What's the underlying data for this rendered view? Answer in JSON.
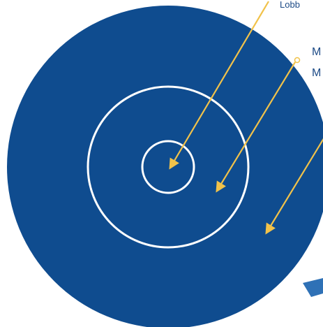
{
  "colors": {
    "outer_circle": "#0f4c8f",
    "ring_stroke": "#ffffff",
    "arrow": "#f1c24a",
    "label_text": "#1c4a86",
    "background": "#ffffff"
  },
  "labels": {
    "top": "Lobb",
    "middle_1": "M",
    "middle_2": "M"
  },
  "arrows": [
    {
      "name": "arrow-to-center"
    },
    {
      "name": "arrow-to-middle-ring"
    },
    {
      "name": "arrow-to-outer-ring"
    }
  ]
}
